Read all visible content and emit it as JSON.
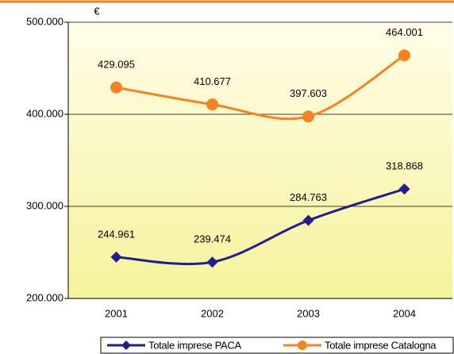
{
  "chart_data": {
    "type": "line",
    "y_label": "€",
    "categories": [
      "2001",
      "2002",
      "2003",
      "2004"
    ],
    "series": [
      {
        "name": "Totale imprese PACA",
        "color": "#1f1f8f",
        "marker": "diamond",
        "values": [
          244961,
          239474,
          284763,
          318868
        ],
        "value_labels": [
          "244.961",
          "239.474",
          "284.763",
          "318.868"
        ]
      },
      {
        "name": "Totale imprese Catalogna",
        "color": "#f7821f",
        "marker": "circle",
        "values": [
          429095,
          410677,
          397603,
          464001
        ],
        "value_labels": [
          "429.095",
          "410.677",
          "397.603",
          "464.001"
        ]
      }
    ],
    "ylim": [
      200000,
      500000
    ],
    "yticks": [
      {
        "value": 200000,
        "label": "200.000"
      },
      {
        "value": 300000,
        "label": "300.000"
      },
      {
        "value": 400000,
        "label": "400.000"
      },
      {
        "value": 500000,
        "label": "500.000"
      }
    ],
    "grid": true,
    "legend": "bottom"
  }
}
